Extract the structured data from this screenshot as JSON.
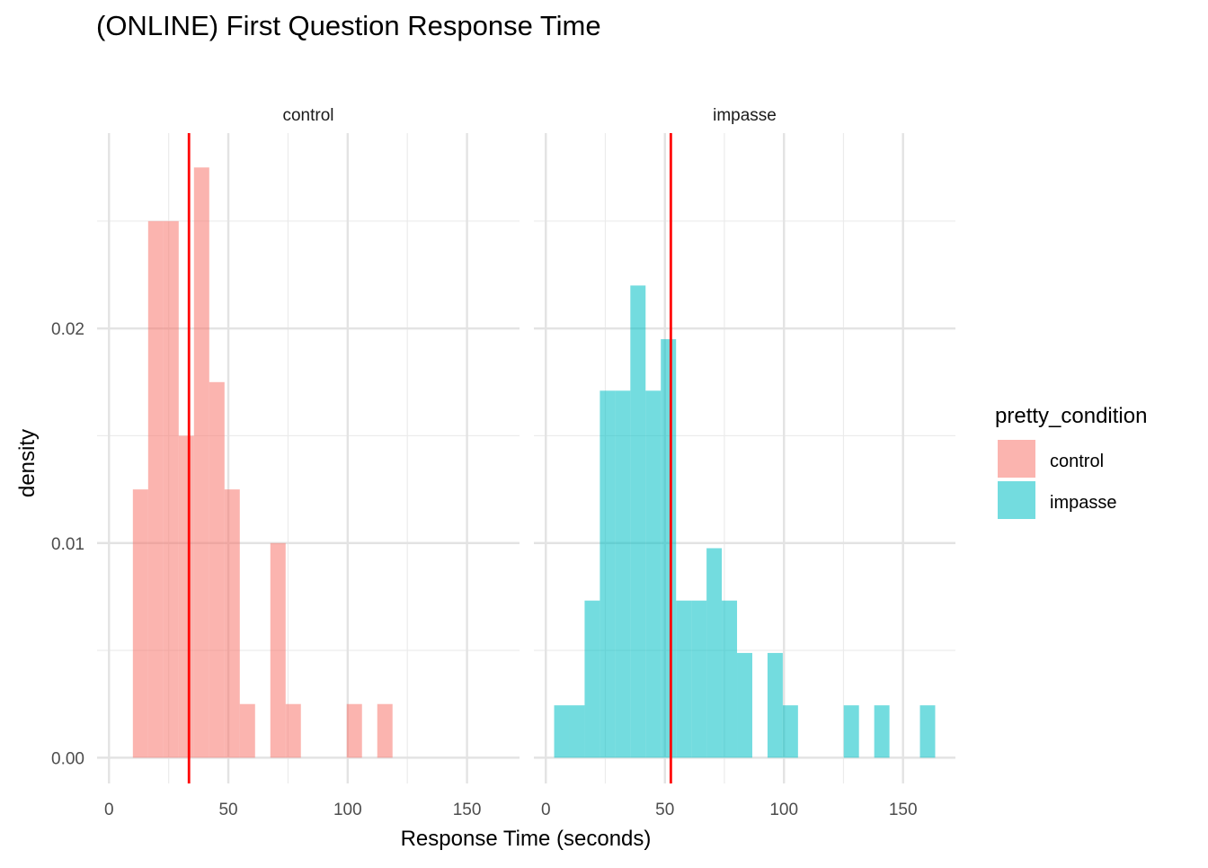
{
  "chart_data": {
    "type": "bar",
    "title": "(ONLINE) First Question Response Time",
    "xlabel": "Response Time (seconds)",
    "ylabel": "density",
    "xlim": [
      -5,
      172
    ],
    "ylim": [
      -0.0012,
      0.0291
    ],
    "x_ticks": [
      0,
      50,
      100,
      150
    ],
    "x_tick_labels": [
      "0",
      "50",
      "100",
      "150"
    ],
    "y_ticks": [
      0,
      0.01,
      0.02
    ],
    "y_tick_labels": [
      "0.00",
      "0.01",
      "0.02"
    ],
    "grid": true,
    "bin_width": 6.4,
    "mean_line_color": "#FF0000",
    "legend": {
      "title": "pretty_condition",
      "position": "right",
      "items": [
        {
          "label": "control",
          "color": "#F8766D"
        },
        {
          "label": "impasse",
          "color": "#00BFC4"
        }
      ]
    },
    "panels": [
      {
        "strip_label": "control",
        "color": "#F8766D",
        "mean_line": 33.5,
        "bins": [
          {
            "x0": 10.0,
            "x1": 16.4,
            "density": 0.0125
          },
          {
            "x0": 16.4,
            "x1": 22.8,
            "density": 0.025
          },
          {
            "x0": 22.8,
            "x1": 29.2,
            "density": 0.025
          },
          {
            "x0": 29.2,
            "x1": 35.6,
            "density": 0.015
          },
          {
            "x0": 35.6,
            "x1": 42.0,
            "density": 0.0275
          },
          {
            "x0": 42.0,
            "x1": 48.4,
            "density": 0.0175
          },
          {
            "x0": 48.4,
            "x1": 54.8,
            "density": 0.0125
          },
          {
            "x0": 54.8,
            "x1": 61.2,
            "density": 0.0025
          },
          {
            "x0": 67.6,
            "x1": 74.0,
            "density": 0.01
          },
          {
            "x0": 74.0,
            "x1": 80.4,
            "density": 0.0025
          },
          {
            "x0": 99.6,
            "x1": 106.0,
            "density": 0.0025
          },
          {
            "x0": 112.4,
            "x1": 118.8,
            "density": 0.0025
          }
        ]
      },
      {
        "strip_label": "impasse",
        "color": "#00BFC4",
        "mean_line": 52.5,
        "bins": [
          {
            "x0": 3.5,
            "x1": 9.9,
            "density": 0.00244
          },
          {
            "x0": 9.9,
            "x1": 16.3,
            "density": 0.00244
          },
          {
            "x0": 16.3,
            "x1": 22.7,
            "density": 0.00732
          },
          {
            "x0": 22.7,
            "x1": 29.1,
            "density": 0.0171
          },
          {
            "x0": 29.1,
            "x1": 35.5,
            "density": 0.0171
          },
          {
            "x0": 35.5,
            "x1": 41.9,
            "density": 0.022
          },
          {
            "x0": 41.9,
            "x1": 48.3,
            "density": 0.0171
          },
          {
            "x0": 48.3,
            "x1": 54.7,
            "density": 0.0195
          },
          {
            "x0": 54.7,
            "x1": 61.1,
            "density": 0.00732
          },
          {
            "x0": 61.1,
            "x1": 67.5,
            "density": 0.00732
          },
          {
            "x0": 67.5,
            "x1": 73.9,
            "density": 0.00976
          },
          {
            "x0": 73.9,
            "x1": 80.3,
            "density": 0.00732
          },
          {
            "x0": 80.3,
            "x1": 86.7,
            "density": 0.00488
          },
          {
            "x0": 93.1,
            "x1": 99.5,
            "density": 0.00488
          },
          {
            "x0": 99.5,
            "x1": 105.9,
            "density": 0.00244
          },
          {
            "x0": 125.1,
            "x1": 131.5,
            "density": 0.00244
          },
          {
            "x0": 137.9,
            "x1": 144.3,
            "density": 0.00244
          },
          {
            "x0": 157.1,
            "x1": 163.5,
            "density": 0.00244
          }
        ]
      }
    ]
  }
}
